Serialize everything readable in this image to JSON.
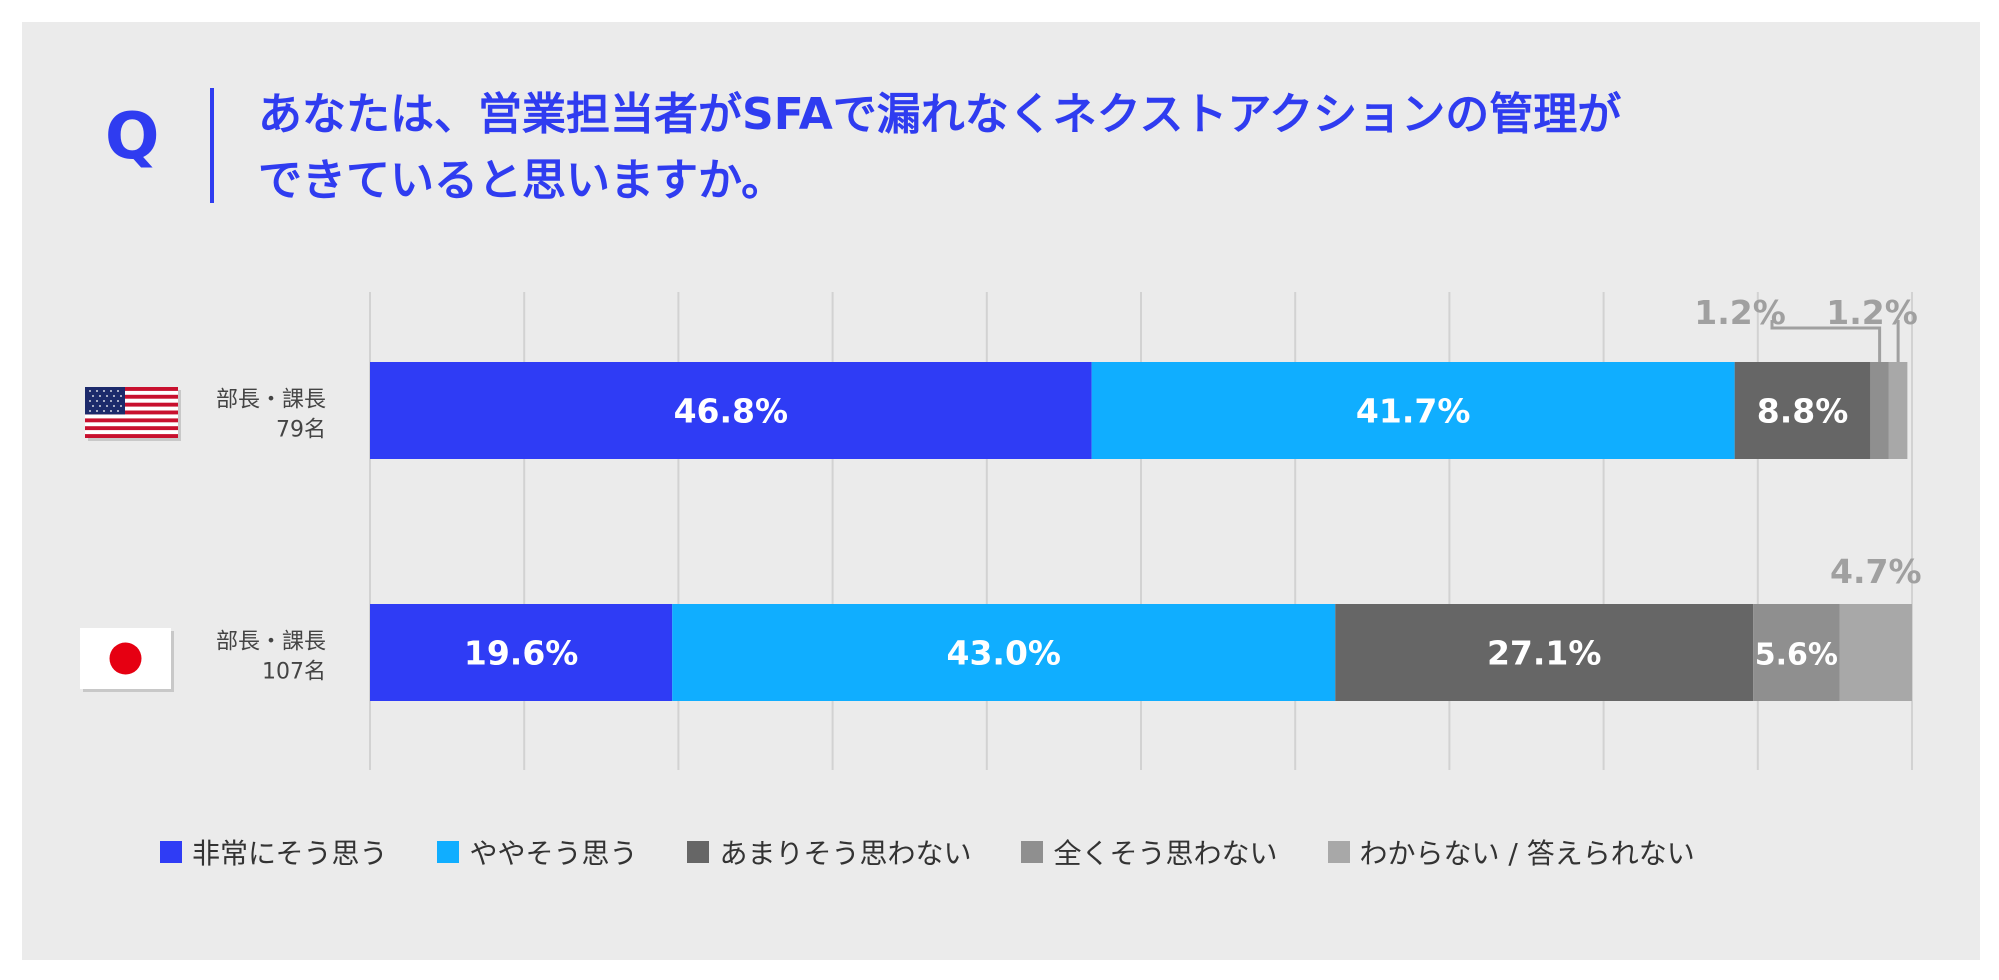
{
  "question": {
    "mark": "Q",
    "line1": "あなたは、営業担当者がSFAで漏れなくネクストアクションの管理が",
    "line2": "できていると思いますか。"
  },
  "chart_data": {
    "type": "bar",
    "orientation": "horizontal",
    "stacked": true,
    "units": "%",
    "xlim": [
      0,
      100
    ],
    "grid": true,
    "legend_placement": "bottom",
    "categories": [
      {
        "group": "部長・課長",
        "count": "79名",
        "flag": "us-flag-icon"
      },
      {
        "group": "部長・課長",
        "count": "107名",
        "flag": "jp-flag-icon"
      }
    ],
    "series": [
      {
        "name": "非常にそう思う",
        "color": "#2f3cf5",
        "values": [
          46.8,
          19.6
        ]
      },
      {
        "name": "ややそう思う",
        "color": "#10aeff",
        "values": [
          41.7,
          43.0
        ]
      },
      {
        "name": "あまりそう思わない",
        "color": "#666666",
        "values": [
          8.8,
          27.1
        ]
      },
      {
        "name": "全くそう思わない",
        "color": "#8f8f8f",
        "values": [
          1.2,
          5.6
        ]
      },
      {
        "name": "わからない / 答えられない",
        "color": "#a8a8a8",
        "values": [
          1.2,
          4.7
        ]
      }
    ],
    "data_labels": [
      [
        "46.8%",
        "41.7%",
        "8.8%",
        "1.2%",
        "1.2%"
      ],
      [
        "19.6%",
        "43.0%",
        "27.1%",
        "5.6%",
        "4.7%"
      ]
    ]
  }
}
